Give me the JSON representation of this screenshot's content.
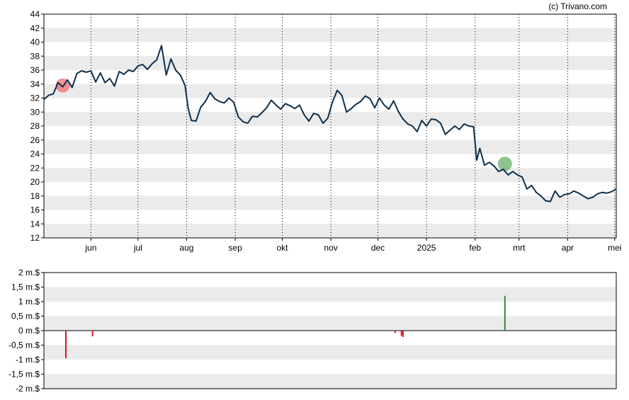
{
  "credit": "(c) Trivano.com",
  "colors": {
    "price_line": "#0e2f4d",
    "band": "#ebebeb",
    "grid_dotted": "#000000",
    "buy": "#2e8b2e",
    "sell": "#e0102a",
    "buy_marker": "#6aad6a",
    "sell_marker": "#f07070"
  },
  "chart_data": [
    {
      "type": "line",
      "name": "price",
      "ylim": [
        12,
        44
      ],
      "y_ticks": [
        "12",
        "14",
        "16",
        "18",
        "20",
        "22",
        "24",
        "26",
        "28",
        "30",
        "32",
        "34",
        "36",
        "38",
        "40",
        "42",
        "44"
      ],
      "y_tick_values": [
        12,
        14,
        16,
        18,
        20,
        22,
        24,
        26,
        28,
        30,
        32,
        34,
        36,
        38,
        40,
        42,
        44
      ],
      "x_range": [
        "2024-05-02",
        "2025-05-02"
      ],
      "month_ticks": [
        {
          "label": "jun",
          "date": "2024-06-01"
        },
        {
          "label": "jul",
          "date": "2024-07-01"
        },
        {
          "label": "aug",
          "date": "2024-08-01"
        },
        {
          "label": "sep",
          "date": "2024-09-01"
        },
        {
          "label": "okt",
          "date": "2024-10-01"
        },
        {
          "label": "nov",
          "date": "2024-11-01"
        },
        {
          "label": "dec",
          "date": "2024-12-01"
        },
        {
          "label": "2025",
          "date": "2025-01-01"
        },
        {
          "label": "feb",
          "date": "2025-02-01"
        },
        {
          "label": "mrt",
          "date": "2025-03-01"
        },
        {
          "label": "apr",
          "date": "2025-04-01"
        },
        {
          "label": "mei",
          "date": "2025-05-01"
        }
      ],
      "grid": "horizontal bands, dotted vertical month lines",
      "x": [
        "2024-05-02",
        "2024-05-05",
        "2024-05-08",
        "2024-05-11",
        "2024-05-14",
        "2024-05-17",
        "2024-05-20",
        "2024-05-23",
        "2024-05-26",
        "2024-05-29",
        "2024-06-01",
        "2024-06-04",
        "2024-06-07",
        "2024-06-10",
        "2024-06-13",
        "2024-06-16",
        "2024-06-19",
        "2024-06-22",
        "2024-06-25",
        "2024-06-28",
        "2024-07-01",
        "2024-07-04",
        "2024-07-07",
        "2024-07-10",
        "2024-07-13",
        "2024-07-16",
        "2024-07-19",
        "2024-07-22",
        "2024-07-25",
        "2024-07-28",
        "2024-07-31",
        "2024-08-02",
        "2024-08-04",
        "2024-08-07",
        "2024-08-10",
        "2024-08-13",
        "2024-08-16",
        "2024-08-19",
        "2024-08-22",
        "2024-08-25",
        "2024-08-28",
        "2024-08-31",
        "2024-09-03",
        "2024-09-06",
        "2024-09-09",
        "2024-09-12",
        "2024-09-15",
        "2024-09-18",
        "2024-09-21",
        "2024-09-24",
        "2024-09-27",
        "2024-09-30",
        "2024-10-03",
        "2024-10-06",
        "2024-10-09",
        "2024-10-12",
        "2024-10-15",
        "2024-10-18",
        "2024-10-21",
        "2024-10-24",
        "2024-10-27",
        "2024-10-30",
        "2024-11-02",
        "2024-11-05",
        "2024-11-08",
        "2024-11-11",
        "2024-11-14",
        "2024-11-17",
        "2024-11-20",
        "2024-11-23",
        "2024-11-26",
        "2024-11-29",
        "2024-12-02",
        "2024-12-05",
        "2024-12-08",
        "2024-12-11",
        "2024-12-14",
        "2024-12-17",
        "2024-12-20",
        "2024-12-23",
        "2024-12-26",
        "2024-12-29",
        "2025-01-01",
        "2025-01-04",
        "2025-01-07",
        "2025-01-10",
        "2025-01-13",
        "2025-01-16",
        "2025-01-19",
        "2025-01-22",
        "2025-01-25",
        "2025-01-28",
        "2025-01-31",
        "2025-02-02",
        "2025-02-04",
        "2025-02-07",
        "2025-02-10",
        "2025-02-13",
        "2025-02-16",
        "2025-02-19",
        "2025-02-22",
        "2025-02-25",
        "2025-02-28",
        "2025-03-03",
        "2025-03-06",
        "2025-03-09",
        "2025-03-12",
        "2025-03-15",
        "2025-03-18",
        "2025-03-21",
        "2025-03-24",
        "2025-03-27",
        "2025-03-30",
        "2025-04-02",
        "2025-04-05",
        "2025-04-08",
        "2025-04-11",
        "2025-04-14",
        "2025-04-17",
        "2025-04-20",
        "2025-04-23",
        "2025-04-26",
        "2025-04-29",
        "2025-05-02"
      ],
      "values": [
        31.8,
        32.4,
        32.6,
        34.2,
        33.6,
        34.6,
        33.5,
        35.5,
        35.9,
        35.7,
        35.9,
        34.3,
        35.6,
        34.2,
        34.8,
        33.7,
        35.8,
        35.4,
        36.0,
        35.8,
        36.6,
        36.8,
        36.1,
        36.9,
        37.5,
        39.5,
        35.3,
        37.6,
        36.0,
        35.3,
        33.8,
        30.5,
        28.8,
        28.7,
        30.7,
        31.5,
        32.8,
        31.9,
        31.5,
        31.3,
        32.0,
        31.4,
        29.3,
        28.6,
        28.4,
        29.4,
        29.3,
        29.9,
        30.6,
        31.7,
        31.0,
        30.4,
        31.2,
        30.9,
        30.5,
        31.0,
        29.6,
        28.7,
        29.8,
        29.6,
        28.4,
        29.1,
        31.4,
        33.1,
        32.4,
        30.0,
        30.5,
        31.1,
        31.5,
        32.3,
        31.9,
        30.6,
        32.0,
        31.0,
        30.4,
        31.6,
        30.1,
        29.0,
        28.3,
        28.0,
        27.2,
        28.8,
        28.0,
        29.0,
        28.9,
        28.4,
        26.8,
        27.4,
        28.0,
        27.5,
        28.3,
        28.0,
        27.9,
        23.1,
        24.8,
        22.4,
        22.8,
        22.3,
        21.5,
        21.8,
        21.0,
        21.5,
        21.0,
        20.7,
        19.0,
        19.5,
        18.5,
        18.0,
        17.3,
        17.2,
        18.7,
        17.8,
        18.2,
        18.3,
        18.7,
        18.4,
        18.0,
        17.6,
        17.8,
        18.3,
        18.5,
        18.4,
        18.6,
        19.0
      ]
    },
    {
      "type": "bar",
      "name": "volume",
      "ylim": [
        -2,
        2
      ],
      "y_ticks": [
        "2 m.$",
        "1,5 m.$",
        "1 m.$",
        "0,5 m.$",
        "0 m.$",
        "-0,5 m.$",
        "-1 m.$",
        "-1,5 m.$",
        "-2 m.$"
      ],
      "y_tick_values": [
        2,
        1.5,
        1,
        0.5,
        0,
        -0.5,
        -1,
        -1.5,
        -2
      ],
      "unit": "m.$",
      "bars": [
        {
          "date": "2024-05-16",
          "value": -0.95
        },
        {
          "date": "2024-06-02",
          "value": -0.2
        },
        {
          "date": "2024-12-12",
          "value": -0.08
        },
        {
          "date": "2024-12-16",
          "value": -0.18
        },
        {
          "date": "2024-12-17",
          "value": -0.22
        },
        {
          "date": "2025-02-20",
          "value": 1.2
        }
      ]
    }
  ],
  "markers": [
    {
      "date": "2024-05-14",
      "value": 33.8,
      "kind": "sell"
    },
    {
      "date": "2025-02-20",
      "value": 22.6,
      "kind": "buy"
    }
  ]
}
